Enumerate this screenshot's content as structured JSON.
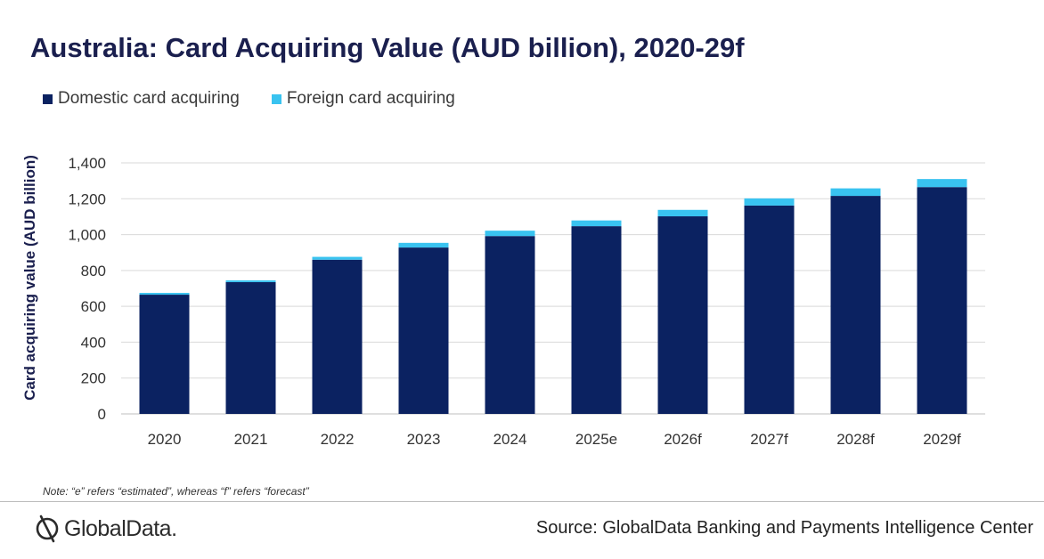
{
  "header": {
    "title": "Australia: Card Acquiring Value (AUD billion), 2020-29f"
  },
  "colors": {
    "domestic": "#0b2261",
    "foreign": "#39c3f0",
    "grid": "#d9d9d9"
  },
  "chart_data": {
    "type": "bar",
    "stacked": true,
    "title": "Australia: Card Acquiring Value (AUD billion), 2020-29f",
    "xlabel": "",
    "ylabel": "Card acquiring value (AUD billion)",
    "ylim": [
      0,
      1400
    ],
    "yticks": [
      0,
      200,
      400,
      600,
      800,
      1000,
      1200,
      1400
    ],
    "ytick_labels": [
      "0",
      "200",
      "400",
      "600",
      "800",
      "1,000",
      "1,200",
      "1,400"
    ],
    "grid": true,
    "legend_position": "top-left",
    "categories": [
      "2020",
      "2021",
      "2022",
      "2023",
      "2024",
      "2025e",
      "2026f",
      "2027f",
      "2028f",
      "2029f"
    ],
    "series": [
      {
        "name": "Domestic card acquiring",
        "values": [
          665,
          735,
          860,
          928,
          992,
          1047,
          1102,
          1162,
          1216,
          1265
        ]
      },
      {
        "name": "Foreign card acquiring",
        "values": [
          10,
          10,
          16,
          26,
          30,
          32,
          36,
          40,
          42,
          45
        ]
      }
    ]
  },
  "footer": {
    "note": "Note: “e” refers “estimated”, whereas “f” refers “forecast”",
    "logo_text": "GlobalData.",
    "source": "Source: GlobalData Banking and Payments Intelligence Center"
  }
}
